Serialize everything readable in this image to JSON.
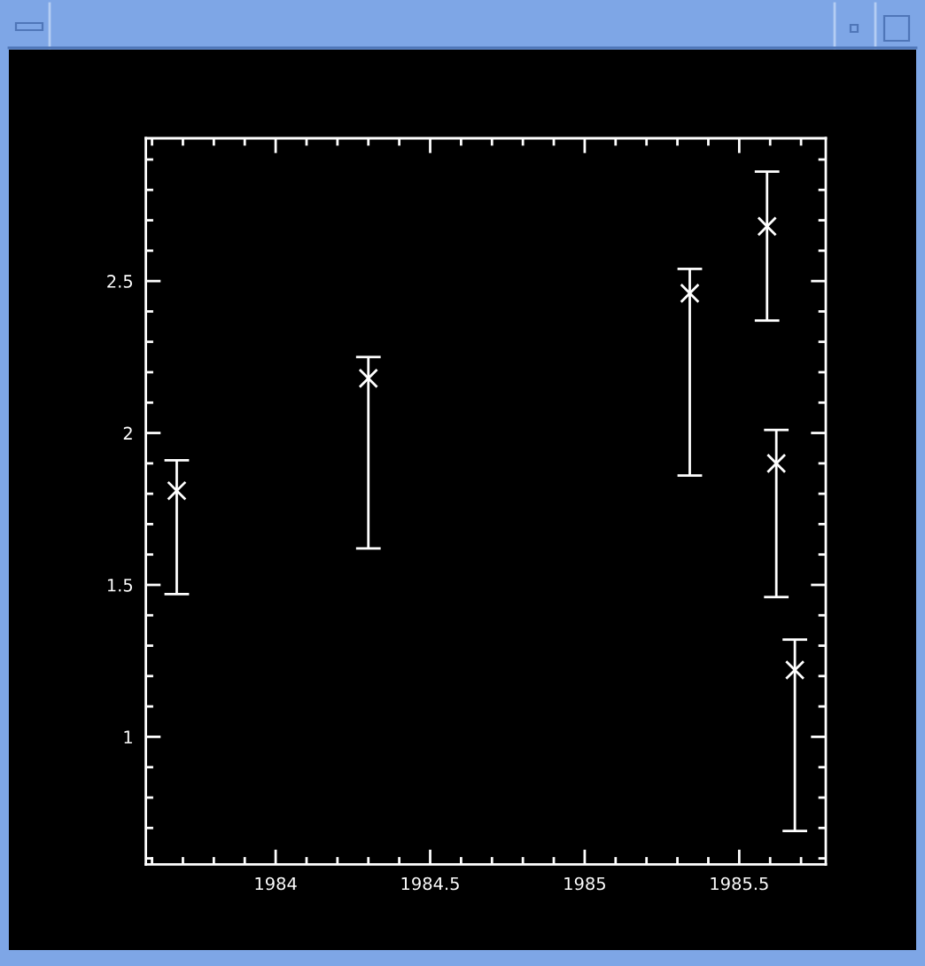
{
  "chart_data": {
    "type": "scatter",
    "x": [
      1983.68,
      1984.3,
      1985.34,
      1985.59,
      1985.62,
      1985.68
    ],
    "values": [
      1.81,
      2.18,
      2.46,
      2.68,
      1.9,
      1.22
    ],
    "errors": [
      [
        1.47,
        1.91
      ],
      [
        1.62,
        2.25
      ],
      [
        1.86,
        2.54
      ],
      [
        2.37,
        2.86
      ],
      [
        1.46,
        2.01
      ],
      [
        0.69,
        1.32
      ]
    ],
    "color": "#ffffff",
    "marker": "cross",
    "grid": false,
    "xlim": [
      1983.58,
      1985.78
    ],
    "ylim": [
      0.58,
      2.97
    ],
    "xticks": [
      {
        "value": 1983.6,
        "label": null
      },
      {
        "value": 1983.7,
        "label": null
      },
      {
        "value": 1983.8,
        "label": null
      },
      {
        "value": 1983.9,
        "label": null
      },
      1984,
      {
        "value": 1984.1,
        "label": null
      },
      {
        "value": 1984.2,
        "label": null
      },
      {
        "value": 1984.3,
        "label": null
      },
      {
        "value": 1984.4,
        "label": null
      },
      1984.5,
      {
        "value": 1984.6,
        "label": null
      },
      {
        "value": 1984.7,
        "label": null
      },
      {
        "value": 1984.8,
        "label": null
      },
      {
        "value": 1984.9,
        "label": null
      },
      1985,
      {
        "value": 1985.1,
        "label": null
      },
      {
        "value": 1985.2,
        "label": null
      },
      {
        "value": 1985.3,
        "label": null
      },
      {
        "value": 1985.4,
        "label": null
      },
      1985.5,
      {
        "value": 1985.6,
        "label": null
      },
      {
        "value": 1985.7,
        "label": null
      }
    ],
    "yticks": [
      {
        "value": 0.6,
        "label": null
      },
      {
        "value": 0.7,
        "label": null
      },
      {
        "value": 0.8,
        "label": null
      },
      {
        "value": 0.9,
        "label": null
      },
      1,
      {
        "value": 1.1,
        "label": null
      },
      {
        "value": 1.2,
        "label": null
      },
      {
        "value": 1.3,
        "label": null
      },
      {
        "value": 1.4,
        "label": null
      },
      1.5,
      {
        "value": 1.6,
        "label": null
      },
      {
        "value": 1.7,
        "label": null
      },
      {
        "value": 1.8,
        "label": null
      },
      {
        "value": 1.9,
        "label": null
      },
      2,
      {
        "value": 2.1,
        "label": null
      },
      {
        "value": 2.2,
        "label": null
      },
      {
        "value": 2.3,
        "label": null
      },
      {
        "value": 2.4,
        "label": null
      },
      2.5,
      {
        "value": 2.6,
        "label": null
      },
      {
        "value": 2.7,
        "label": null
      },
      {
        "value": 2.8,
        "label": null
      },
      {
        "value": 2.9,
        "label": null
      }
    ]
  }
}
